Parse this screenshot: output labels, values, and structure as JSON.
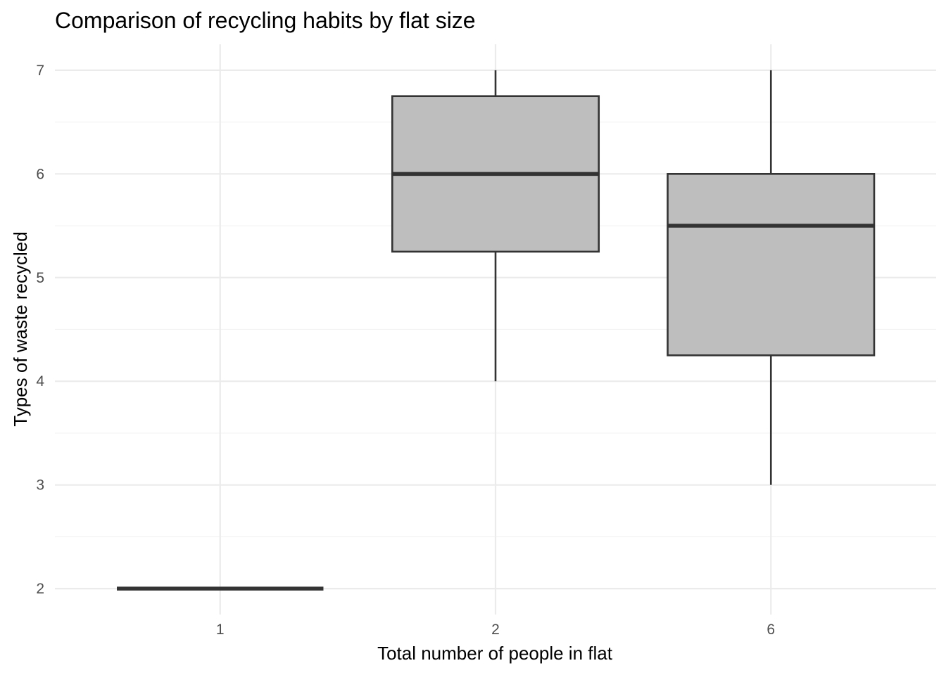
{
  "chart_data": {
    "type": "boxplot",
    "title": "Comparison of recycling habits by flat size",
    "xlabel": "Total number of people in flat",
    "ylabel": "Types of waste recycled",
    "categories": [
      "1",
      "2",
      "6"
    ],
    "boxes": [
      {
        "category": "1",
        "min": 2,
        "q1": 2,
        "median": 2,
        "q3": 2,
        "max": 2
      },
      {
        "category": "2",
        "min": 4,
        "q1": 5.25,
        "median": 6,
        "q3": 6.75,
        "max": 7
      },
      {
        "category": "6",
        "min": 3,
        "q1": 4.25,
        "median": 5.5,
        "q3": 6,
        "max": 7
      }
    ],
    "ylim": [
      1.75,
      7.25
    ],
    "yticks": [
      2,
      3,
      4,
      5,
      6,
      7
    ],
    "grid": true,
    "legend": "none",
    "colors": {
      "box_fill": "#bebebe",
      "box_stroke": "#333333",
      "grid": "#ebebeb"
    }
  }
}
